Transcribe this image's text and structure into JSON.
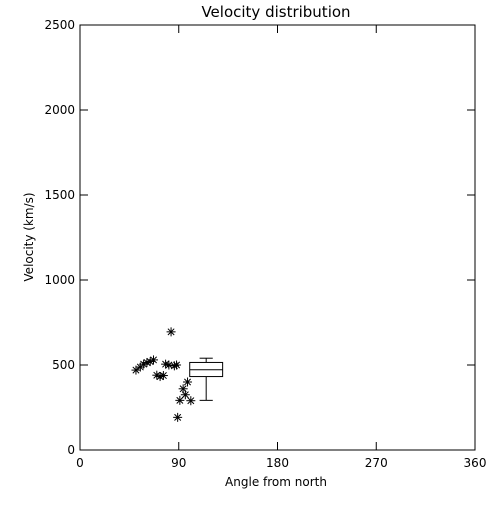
{
  "chart_data": {
    "type": "scatter",
    "title": "Velocity distribution",
    "xlabel": "Angle from north",
    "ylabel": "Velocity (km/s)",
    "xlim": [
      0,
      360
    ],
    "ylim": [
      0,
      2500
    ],
    "x_ticks": [
      0,
      90,
      180,
      270,
      360
    ],
    "y_ticks": [
      0,
      500,
      1000,
      1500,
      2000,
      2500
    ],
    "grid": false,
    "points": [
      {
        "x": 51,
        "y": 470
      },
      {
        "x": 55,
        "y": 488
      },
      {
        "x": 58,
        "y": 505
      },
      {
        "x": 61,
        "y": 515
      },
      {
        "x": 64,
        "y": 520
      },
      {
        "x": 67,
        "y": 530
      },
      {
        "x": 70,
        "y": 440
      },
      {
        "x": 73,
        "y": 432
      },
      {
        "x": 76,
        "y": 438
      },
      {
        "x": 78,
        "y": 505
      },
      {
        "x": 81,
        "y": 500
      },
      {
        "x": 83,
        "y": 695
      },
      {
        "x": 86,
        "y": 495
      },
      {
        "x": 88,
        "y": 500
      },
      {
        "x": 89,
        "y": 192
      },
      {
        "x": 91,
        "y": 292
      },
      {
        "x": 94,
        "y": 360
      },
      {
        "x": 96,
        "y": 325
      },
      {
        "x": 98,
        "y": 400
      },
      {
        "x": 101,
        "y": 290
      }
    ],
    "boxplot": {
      "x_center": 115,
      "x_halfwidth": 15,
      "whisker_halfwidth": 6,
      "min": 292,
      "q1": 432,
      "median": 472,
      "q3": 515,
      "max": 540
    }
  }
}
